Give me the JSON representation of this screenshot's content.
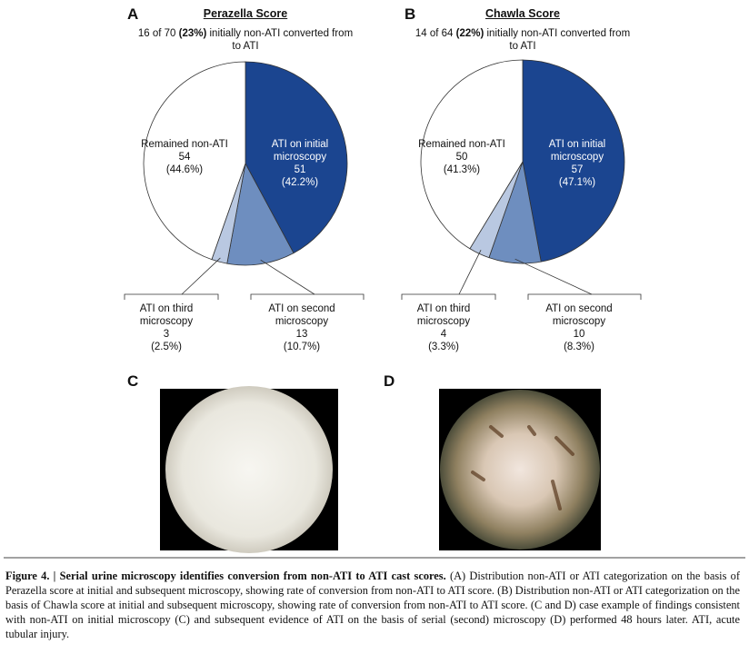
{
  "chart_data": [
    {
      "type": "pie",
      "panel": "A",
      "title": "Perazella Score",
      "subtitle": [
        "16 of 70",
        "(23%)",
        "initially non-ATI converted from to ATI"
      ],
      "categories": [
        "ATI on initial microscopy",
        "ATI on second microscopy",
        "ATI on third microscopy",
        "Remained non-ATI"
      ],
      "values": [
        51,
        13,
        3,
        54
      ],
      "percentages": [
        42.2,
        10.7,
        2.5,
        44.6
      ],
      "percentage_labels": [
        "(42.2%)",
        "(10.7%)",
        "(2.5%)",
        "(44.6%)"
      ],
      "colors": [
        "#1b4590",
        "#6e8ebf",
        "#b9c8e1",
        "#ffffff"
      ]
    },
    {
      "type": "pie",
      "panel": "B",
      "title": "Chawla Score",
      "subtitle": [
        "14 of 64",
        "(22%)",
        "initially non-ATI converted from to ATI"
      ],
      "categories": [
        "ATI on initial microscopy",
        "ATI on second microscopy",
        "ATI on third microscopy",
        "Remained non-ATI"
      ],
      "values": [
        57,
        10,
        4,
        50
      ],
      "percentages": [
        47.1,
        8.3,
        3.3,
        41.3
      ],
      "percentage_labels": [
        "(47.1%)",
        "(8.3%)",
        "(3.3%)",
        "(41.3%)"
      ],
      "colors": [
        "#1b4590",
        "#6e8ebf",
        "#b9c8e1",
        "#ffffff"
      ]
    }
  ],
  "images": [
    {
      "panel": "C"
    },
    {
      "panel": "D"
    }
  ],
  "caption": {
    "label": "Figure 4.",
    "separator": "|",
    "title": "Serial urine microscopy identifies conversion from non-ATI to ATI cast scores.",
    "text": "(A) Distribution non-ATI or ATI categorization on the basis of Perazella score at initial and subsequent microscopy, showing rate of conversion from non-ATI to ATI score. (B) Distribution non-ATI or ATI categorization on the basis of Chawla score at initial and subsequent microscopy, showing rate of conversion from non-ATI to ATI score. (C and D) case example of findings consistent with non-ATI on initial microscopy (C) and subsequent evidence of ATI on the basis of serial (second) microscopy (D) performed 48 hours later. ATI, acute tubular injury."
  }
}
